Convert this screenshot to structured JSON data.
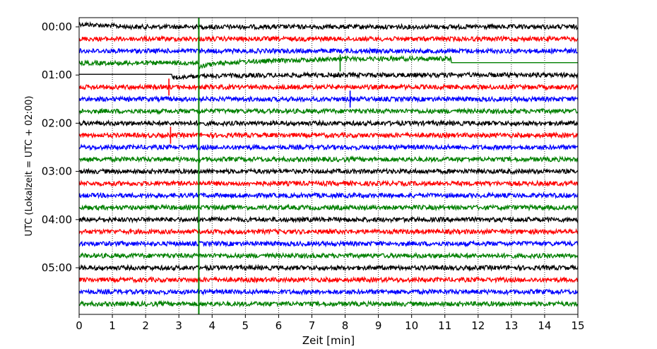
{
  "chart_data": {
    "type": "line",
    "title": "",
    "xlabel": "Zeit  [min]",
    "ylabel": "UTC (Lokalzeit = UTC + 02:00)",
    "xlim": [
      0,
      15
    ],
    "x_ticks": [
      0,
      1,
      2,
      3,
      4,
      5,
      6,
      7,
      8,
      9,
      10,
      11,
      12,
      13,
      14,
      15
    ],
    "x_tick_labels": [
      "0",
      "1",
      "2",
      "3",
      "4",
      "5",
      "6",
      "7",
      "8",
      "9",
      "10",
      "11",
      "12",
      "13",
      "14",
      "15"
    ],
    "y_tick_labels": [
      "00:00",
      "01:00",
      "02:00",
      "03:00",
      "04:00",
      "05:00"
    ],
    "trace_interval_min": 15,
    "trace_count": 24,
    "trace_colors": [
      "#000000",
      "#ff0000",
      "#0000ff",
      "#008000"
    ],
    "grid": {
      "vertical_dotted": true
    },
    "events": [
      {
        "trace_index": 3,
        "x_min": 3.6,
        "type": "marker-line",
        "color": "#008000"
      },
      {
        "trace_index": 4,
        "x_min": 2.8,
        "type": "step-offset"
      },
      {
        "trace_index": 3,
        "x_min": 11.2,
        "type": "flat-segment"
      },
      {
        "trace_index": 5,
        "x_min": 2.7,
        "type": "spike"
      },
      {
        "trace_index": 9,
        "x_min": 2.75,
        "type": "spike"
      },
      {
        "trace_index": 3,
        "x_min": 7.85,
        "type": "spike"
      },
      {
        "trace_index": 6,
        "x_min": 8.15,
        "type": "spike"
      }
    ]
  }
}
